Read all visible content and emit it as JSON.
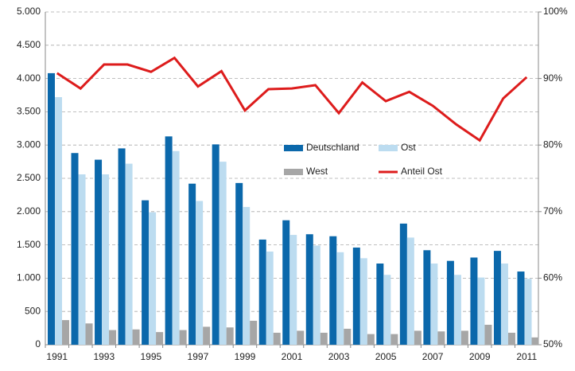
{
  "chart_data": {
    "type": "bar_line",
    "categories": [
      "1991",
      null,
      "1993",
      null,
      "1995",
      null,
      "1997",
      null,
      "1999",
      null,
      "2001",
      null,
      "2003",
      null,
      "2005",
      null,
      "2007",
      null,
      "2009",
      null,
      "2011"
    ],
    "series": [
      {
        "name": "Deutschland",
        "color": "#0b68ab",
        "type": "bar",
        "values": [
          4080,
          2880,
          2780,
          2950,
          2170,
          3130,
          2420,
          3010,
          2430,
          1580,
          1870,
          1660,
          1630,
          1460,
          1220,
          1820,
          1420,
          1260,
          1310,
          1410,
          1100
        ]
      },
      {
        "name": "Ost",
        "color": "#bcdcf0",
        "type": "bar",
        "values": [
          3720,
          2560,
          2560,
          2720,
          1990,
          2910,
          2160,
          2750,
          2070,
          1400,
          1650,
          1490,
          1390,
          1300,
          1050,
          1610,
          1220,
          1050,
          1010,
          1220,
          990
        ]
      },
      {
        "name": "West",
        "color": "#a6a6a6",
        "type": "bar",
        "values": [
          370,
          320,
          220,
          230,
          190,
          220,
          270,
          260,
          360,
          180,
          210,
          180,
          240,
          160,
          160,
          210,
          200,
          210,
          300,
          180,
          110
        ]
      },
      {
        "name": "Anteil Ost",
        "color": "#dd1c1c",
        "type": "line",
        "axis": "y2",
        "values": [
          90.8,
          88.5,
          92.1,
          92.1,
          91.0,
          93.1,
          88.8,
          91.1,
          85.2,
          88.4,
          88.5,
          89.0,
          84.8,
          89.4,
          86.6,
          88.0,
          85.9,
          83.1,
          80.7,
          87.0,
          90.2
        ]
      }
    ],
    "ylim": [
      0,
      5000
    ],
    "yticks": [
      {
        "value": 0,
        "label": "0"
      },
      {
        "value": 500,
        "label": "500"
      },
      {
        "value": 1000,
        "label": "1.000"
      },
      {
        "value": 1500,
        "label": "1.500"
      },
      {
        "value": 2000,
        "label": "2.000"
      },
      {
        "value": 2500,
        "label": "2.500"
      },
      {
        "value": 3000,
        "label": "3.000"
      },
      {
        "value": 3500,
        "label": "3.500"
      },
      {
        "value": 4000,
        "label": "4.000"
      },
      {
        "value": 4500,
        "label": "4.500"
      },
      {
        "value": 5000,
        "label": "5.000"
      }
    ],
    "y2lim": [
      50,
      100
    ],
    "y2ticks": [
      {
        "value": 50,
        "label": "50%"
      },
      {
        "value": 60,
        "label": "60%"
      },
      {
        "value": 70,
        "label": "70%"
      },
      {
        "value": 80,
        "label": "80%"
      },
      {
        "value": 90,
        "label": "90%"
      },
      {
        "value": 100,
        "label": "100%"
      }
    ],
    "grid": true
  }
}
